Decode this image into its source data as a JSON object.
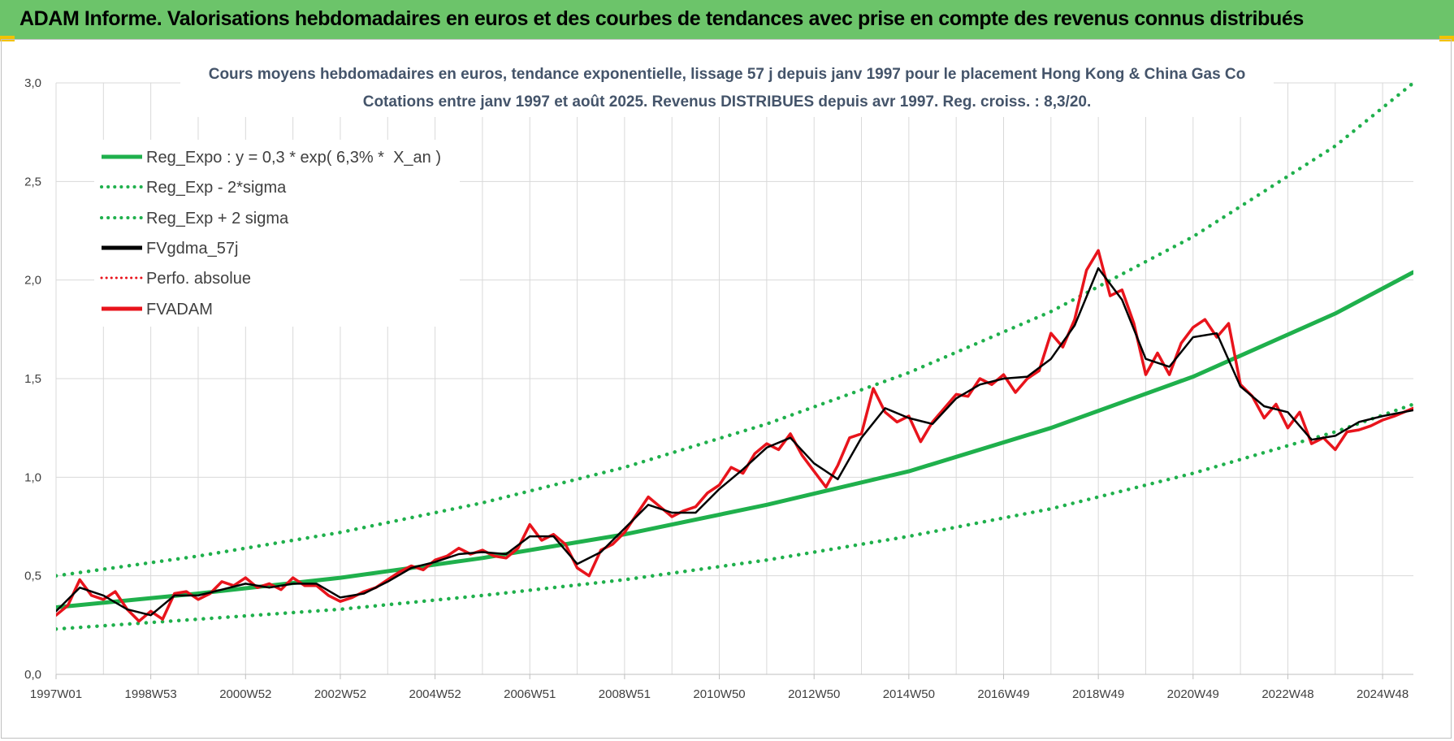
{
  "header": {
    "title": "ADAM Informe. Valorisations hebdomadaires en euros et des courbes de tendances avec prise en compte des revenus connus distribués"
  },
  "chart_data": {
    "type": "line",
    "title_line1": "Cours moyens hebdomadaires en euros, tendance exponentielle, lissage 57 j depuis janv 1997  pour le placement Hong Kong & China Gas Co",
    "title_line2": "Cotations entre janv 1997 et août 2025.  Revenus DISTRIBUES depuis avr 1997. Reg. croiss. : 8,3/20.",
    "xlabel": "",
    "ylabel": "",
    "x_range": [
      1997.0,
      2025.65
    ],
    "ylim": [
      0,
      3.0
    ],
    "y_ticks": [
      0,
      0.5,
      1.0,
      1.5,
      2.0,
      2.5,
      3.0
    ],
    "y_tick_labels": [
      "0,0",
      "0,5",
      "1,0",
      "1,5",
      "2,0",
      "2,5",
      "3,0"
    ],
    "x_tick_labels": [
      "1997W01",
      "1998W53",
      "2000W52",
      "2002W52",
      "2004W52",
      "2006W51",
      "2008W51",
      "2010W50",
      "2012W50",
      "2014W50",
      "2016W49",
      "2018W49",
      "2020W49",
      "2022W48",
      "2024W48"
    ],
    "x_tick_values": [
      1997.0,
      1999.0,
      2001.0,
      2003.0,
      2005.0,
      2007.0,
      2009.0,
      2011.0,
      2013.0,
      2015.0,
      2017.0,
      2019.0,
      2021.0,
      2023.0,
      2025.0
    ],
    "grid": true,
    "legend_position": "top-left",
    "colors": {
      "trend": "#1fb04c",
      "smooth": "#000000",
      "price": "#e8141c"
    },
    "series": [
      {
        "name": "Reg_Expo : y = 0,3 * exp( 6,3% *  X_an )",
        "style": "solid",
        "color": "#1fb04c",
        "x": [
          1997.0,
          2000.0,
          2003.0,
          2006.0,
          2009.0,
          2012.0,
          2015.0,
          2018.0,
          2021.0,
          2024.0,
          2025.65
        ],
        "values": [
          0.34,
          0.41,
          0.49,
          0.59,
          0.71,
          0.86,
          1.03,
          1.25,
          1.51,
          1.83,
          2.04
        ]
      },
      {
        "name": "Reg_Exp - 2*sigma",
        "style": "dotted",
        "color": "#1fb04c",
        "x": [
          1997.0,
          2000.0,
          2003.0,
          2006.0,
          2009.0,
          2012.0,
          2015.0,
          2018.0,
          2021.0,
          2024.0,
          2025.65
        ],
        "values": [
          0.23,
          0.28,
          0.33,
          0.4,
          0.48,
          0.58,
          0.7,
          0.84,
          1.02,
          1.23,
          1.37
        ]
      },
      {
        "name": "Reg_Exp + 2 sigma",
        "style": "dotted",
        "color": "#1fb04c",
        "x": [
          1997.0,
          2000.0,
          2003.0,
          2006.0,
          2009.0,
          2012.0,
          2015.0,
          2018.0,
          2021.0,
          2024.0,
          2025.65
        ],
        "values": [
          0.5,
          0.6,
          0.72,
          0.87,
          1.05,
          1.27,
          1.53,
          1.84,
          2.22,
          2.68,
          3.0
        ]
      },
      {
        "name": "FVgdma_57j",
        "style": "solid",
        "color": "#000000",
        "x": [
          1997.0,
          1997.5,
          1998.0,
          1998.5,
          1999.0,
          1999.5,
          2000.0,
          2000.5,
          2001.0,
          2001.5,
          2002.0,
          2002.5,
          2003.0,
          2003.5,
          2004.0,
          2004.5,
          2005.0,
          2005.5,
          2006.0,
          2006.5,
          2007.0,
          2007.5,
          2008.0,
          2008.5,
          2009.0,
          2009.5,
          2010.0,
          2010.5,
          2011.0,
          2011.5,
          2012.0,
          2012.5,
          2013.0,
          2013.5,
          2014.0,
          2014.5,
          2015.0,
          2015.5,
          2016.0,
          2016.5,
          2017.0,
          2017.5,
          2018.0,
          2018.5,
          2019.0,
          2019.5,
          2020.0,
          2020.5,
          2021.0,
          2021.5,
          2022.0,
          2022.5,
          2023.0,
          2023.5,
          2024.0,
          2024.5,
          2025.0,
          2025.65
        ],
        "values": [
          0.32,
          0.44,
          0.4,
          0.33,
          0.3,
          0.4,
          0.4,
          0.43,
          0.46,
          0.44,
          0.46,
          0.46,
          0.39,
          0.41,
          0.47,
          0.54,
          0.57,
          0.61,
          0.62,
          0.61,
          0.7,
          0.7,
          0.56,
          0.62,
          0.74,
          0.86,
          0.82,
          0.82,
          0.94,
          1.04,
          1.15,
          1.2,
          1.07,
          0.99,
          1.2,
          1.35,
          1.3,
          1.27,
          1.4,
          1.47,
          1.5,
          1.51,
          1.6,
          1.77,
          2.06,
          1.9,
          1.6,
          1.56,
          1.71,
          1.73,
          1.46,
          1.36,
          1.33,
          1.19,
          1.21,
          1.28,
          1.31,
          1.34
        ]
      },
      {
        "name": "Perfo. absolue",
        "style": "dotted",
        "color": "#e8141c",
        "x": [],
        "values": []
      },
      {
        "name": "FVADAM",
        "style": "solid",
        "color": "#e8141c",
        "x": [
          1997.0,
          1997.25,
          1997.5,
          1997.75,
          1998.0,
          1998.25,
          1998.5,
          1998.75,
          1999.0,
          1999.25,
          1999.5,
          1999.75,
          2000.0,
          2000.25,
          2000.5,
          2000.75,
          2001.0,
          2001.25,
          2001.5,
          2001.75,
          2002.0,
          2002.25,
          2002.5,
          2002.75,
          2003.0,
          2003.25,
          2003.5,
          2003.75,
          2004.0,
          2004.25,
          2004.5,
          2004.75,
          2005.0,
          2005.25,
          2005.5,
          2005.75,
          2006.0,
          2006.25,
          2006.5,
          2006.75,
          2007.0,
          2007.25,
          2007.5,
          2007.75,
          2008.0,
          2008.25,
          2008.5,
          2008.75,
          2009.0,
          2009.25,
          2009.5,
          2009.75,
          2010.0,
          2010.25,
          2010.5,
          2010.75,
          2011.0,
          2011.25,
          2011.5,
          2011.75,
          2012.0,
          2012.25,
          2012.5,
          2012.75,
          2013.0,
          2013.25,
          2013.5,
          2013.75,
          2014.0,
          2014.25,
          2014.5,
          2014.75,
          2015.0,
          2015.25,
          2015.5,
          2015.75,
          2016.0,
          2016.25,
          2016.5,
          2016.75,
          2017.0,
          2017.25,
          2017.5,
          2017.75,
          2018.0,
          2018.25,
          2018.5,
          2018.75,
          2019.0,
          2019.25,
          2019.5,
          2019.75,
          2020.0,
          2020.25,
          2020.5,
          2020.75,
          2021.0,
          2021.25,
          2021.5,
          2021.75,
          2022.0,
          2022.25,
          2022.5,
          2022.75,
          2023.0,
          2023.25,
          2023.5,
          2023.75,
          2024.0,
          2024.25,
          2024.5,
          2024.75,
          2025.0,
          2025.25,
          2025.65
        ],
        "values": [
          0.3,
          0.35,
          0.48,
          0.4,
          0.38,
          0.42,
          0.33,
          0.27,
          0.32,
          0.28,
          0.41,
          0.42,
          0.38,
          0.41,
          0.47,
          0.45,
          0.49,
          0.44,
          0.46,
          0.43,
          0.49,
          0.45,
          0.45,
          0.4,
          0.37,
          0.39,
          0.42,
          0.44,
          0.48,
          0.52,
          0.55,
          0.53,
          0.58,
          0.6,
          0.64,
          0.61,
          0.63,
          0.6,
          0.59,
          0.64,
          0.76,
          0.68,
          0.71,
          0.66,
          0.54,
          0.5,
          0.63,
          0.66,
          0.72,
          0.81,
          0.9,
          0.85,
          0.8,
          0.83,
          0.85,
          0.92,
          0.96,
          1.05,
          1.02,
          1.12,
          1.17,
          1.14,
          1.22,
          1.11,
          1.03,
          0.95,
          1.06,
          1.2,
          1.22,
          1.45,
          1.33,
          1.28,
          1.31,
          1.18,
          1.28,
          1.35,
          1.42,
          1.41,
          1.5,
          1.47,
          1.52,
          1.43,
          1.5,
          1.54,
          1.73,
          1.66,
          1.8,
          2.05,
          2.15,
          1.92,
          1.95,
          1.78,
          1.52,
          1.63,
          1.52,
          1.68,
          1.76,
          1.8,
          1.71,
          1.78,
          1.47,
          1.41,
          1.3,
          1.37,
          1.25,
          1.33,
          1.17,
          1.2,
          1.14,
          1.23,
          1.24,
          1.26,
          1.29,
          1.31,
          1.35
        ]
      }
    ]
  }
}
